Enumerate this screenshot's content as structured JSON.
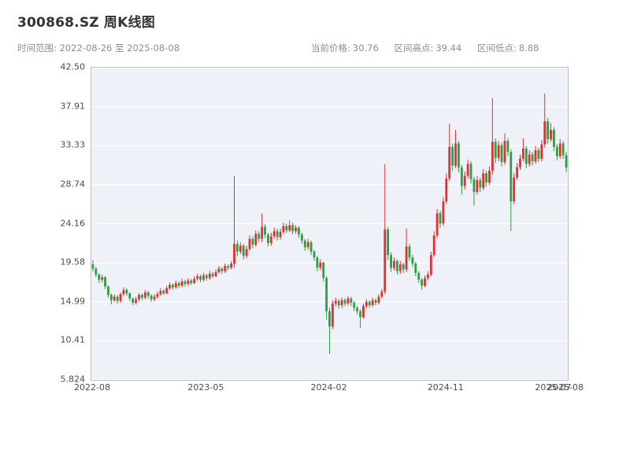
{
  "header": {
    "title": "300868.SZ 周K线图",
    "time_range_label": "时间范围:",
    "time_range": "2022-08-26 至 2025-08-08",
    "stats": {
      "current_price_label": "当前价格:",
      "current_price": "30.76",
      "high_label": "区间高点:",
      "high": "39.44",
      "low_label": "区间低点:",
      "low": "8.88"
    }
  },
  "chart_data": {
    "type": "candlestick",
    "title": "300868.SZ 周K线图",
    "frequency": "weekly",
    "start_date": "2022-08-26",
    "end_date": "2025-08-08",
    "current_price": 30.76,
    "range_high": 39.44,
    "range_low": 8.88,
    "ylim": [
      5.824,
      42.5
    ],
    "grid": true,
    "up_color": "#e03131",
    "down_color": "#2f9e44",
    "grid_color": "#ffffff",
    "bg_color": "#eef1f8",
    "axis_color": "#b9c0cb",
    "yticks": [
      {
        "label": "42.50",
        "value": 42.5
      },
      {
        "label": "37.91",
        "value": 37.9155
      },
      {
        "label": "33.33",
        "value": 33.331
      },
      {
        "label": "28.74",
        "value": 28.7465
      },
      {
        "label": "24.16",
        "value": 24.162
      },
      {
        "label": "19.58",
        "value": 19.5775
      },
      {
        "label": "14.99",
        "value": 14.993
      },
      {
        "label": "10.41",
        "value": 10.4085
      },
      {
        "label": "5.824",
        "value": 5.824
      }
    ],
    "xticks": [
      {
        "label": "2022-08",
        "index": 0
      },
      {
        "label": "2023-05",
        "index": 37
      },
      {
        "label": "2024-02",
        "index": 77
      },
      {
        "label": "2024-11",
        "index": 115
      },
      {
        "label": "2025-07",
        "index": 150
      },
      {
        "label": "2025-08",
        "index": 154
      }
    ],
    "ohlc_format": [
      "open",
      "high",
      "low",
      "close"
    ],
    "candles": [
      [
        19.4,
        19.9,
        18.6,
        18.9
      ],
      [
        18.9,
        19.1,
        17.9,
        18.2
      ],
      [
        18.2,
        18.4,
        17.2,
        17.6
      ],
      [
        17.6,
        18.2,
        17.3,
        17.9
      ],
      [
        17.9,
        18.0,
        16.5,
        16.8
      ],
      [
        16.8,
        16.9,
        15.5,
        15.8
      ],
      [
        15.8,
        16.0,
        14.7,
        15.2
      ],
      [
        15.2,
        15.9,
        15.0,
        15.6
      ],
      [
        15.6,
        15.8,
        14.8,
        15.1
      ],
      [
        15.1,
        16.1,
        14.9,
        15.9
      ],
      [
        15.9,
        16.7,
        15.7,
        16.4
      ],
      [
        16.4,
        16.6,
        15.7,
        16.0
      ],
      [
        16.0,
        16.1,
        15.1,
        15.4
      ],
      [
        15.4,
        15.5,
        14.6,
        14.9
      ],
      [
        14.9,
        15.6,
        14.7,
        15.3
      ],
      [
        15.3,
        16.0,
        15.1,
        15.8
      ],
      [
        15.8,
        16.0,
        15.2,
        15.5
      ],
      [
        15.5,
        16.4,
        15.3,
        16.1
      ],
      [
        16.1,
        16.3,
        15.4,
        15.7
      ],
      [
        15.7,
        15.9,
        15.0,
        15.3
      ],
      [
        15.3,
        15.9,
        15.1,
        15.6
      ],
      [
        15.6,
        16.2,
        15.4,
        15.9
      ],
      [
        15.9,
        16.6,
        15.7,
        16.3
      ],
      [
        16.3,
        16.5,
        15.8,
        16.0
      ],
      [
        16.0,
        16.9,
        15.9,
        16.6
      ],
      [
        16.6,
        17.3,
        16.4,
        17.0
      ],
      [
        17.0,
        17.2,
        16.4,
        16.7
      ],
      [
        16.7,
        17.5,
        16.5,
        17.2
      ],
      [
        17.2,
        17.4,
        16.6,
        16.9
      ],
      [
        16.9,
        17.7,
        16.7,
        17.4
      ],
      [
        17.4,
        17.6,
        16.8,
        17.1
      ],
      [
        17.1,
        17.8,
        16.9,
        17.5
      ],
      [
        17.5,
        17.7,
        17.0,
        17.2
      ],
      [
        17.2,
        18.0,
        17.1,
        17.7
      ],
      [
        17.7,
        18.3,
        17.5,
        18.0
      ],
      [
        18.0,
        18.2,
        17.3,
        17.6
      ],
      [
        17.6,
        18.4,
        17.4,
        18.1
      ],
      [
        18.1,
        18.3,
        17.5,
        17.8
      ],
      [
        17.8,
        18.6,
        17.6,
        18.3
      ],
      [
        18.3,
        18.5,
        17.8,
        18.0
      ],
      [
        18.0,
        18.8,
        17.9,
        18.5
      ],
      [
        18.5,
        19.2,
        18.3,
        18.9
      ],
      [
        18.9,
        19.1,
        18.3,
        18.6
      ],
      [
        18.6,
        19.5,
        18.4,
        19.2
      ],
      [
        19.2,
        19.4,
        18.7,
        19.0
      ],
      [
        19.0,
        19.8,
        18.8,
        19.5
      ],
      [
        19.5,
        29.74,
        19.0,
        21.8
      ],
      [
        21.8,
        22.2,
        20.4,
        20.9
      ],
      [
        20.9,
        22.0,
        20.6,
        21.6
      ],
      [
        21.6,
        21.8,
        20.0,
        20.4
      ],
      [
        20.4,
        21.6,
        20.1,
        21.2
      ],
      [
        21.2,
        22.8,
        21.0,
        22.4
      ],
      [
        22.4,
        22.7,
        21.3,
        21.7
      ],
      [
        21.7,
        23.4,
        21.5,
        23.0
      ],
      [
        23.0,
        23.3,
        22.0,
        22.4
      ],
      [
        22.4,
        25.38,
        22.0,
        23.8
      ],
      [
        23.8,
        24.1,
        22.5,
        22.9
      ],
      [
        22.9,
        23.1,
        21.5,
        21.9
      ],
      [
        21.9,
        23.1,
        21.6,
        22.7
      ],
      [
        22.7,
        23.7,
        22.4,
        23.3
      ],
      [
        23.3,
        23.6,
        22.2,
        22.6
      ],
      [
        22.6,
        23.6,
        22.3,
        23.2
      ],
      [
        23.2,
        24.3,
        23.0,
        23.9
      ],
      [
        23.9,
        24.2,
        23.1,
        23.4
      ],
      [
        23.4,
        24.55,
        23.2,
        24.0
      ],
      [
        24.0,
        24.3,
        22.9,
        23.3
      ],
      [
        23.3,
        24.0,
        23.0,
        23.7
      ],
      [
        23.7,
        23.9,
        22.5,
        22.9
      ],
      [
        22.9,
        23.1,
        21.8,
        22.2
      ],
      [
        22.2,
        22.4,
        21.0,
        21.4
      ],
      [
        21.4,
        22.4,
        21.1,
        22.0
      ],
      [
        22.0,
        22.2,
        20.5,
        20.9
      ],
      [
        20.9,
        21.1,
        19.8,
        20.2
      ],
      [
        20.2,
        20.4,
        18.6,
        19.0
      ],
      [
        19.0,
        20.0,
        18.7,
        19.6
      ],
      [
        19.6,
        19.7,
        17.4,
        17.8
      ],
      [
        17.8,
        18.0,
        12.9,
        13.9
      ],
      [
        13.9,
        14.3,
        8.88,
        12.1
      ],
      [
        12.1,
        15.2,
        11.8,
        14.8
      ],
      [
        14.8,
        15.5,
        14.5,
        15.1
      ],
      [
        15.1,
        15.3,
        14.2,
        14.6
      ],
      [
        14.6,
        15.5,
        14.3,
        15.2
      ],
      [
        15.2,
        15.4,
        14.5,
        14.8
      ],
      [
        14.8,
        15.7,
        14.6,
        15.4
      ],
      [
        15.4,
        15.6,
        14.5,
        14.9
      ],
      [
        14.9,
        15.1,
        13.9,
        14.3
      ],
      [
        14.3,
        14.5,
        13.5,
        13.9
      ],
      [
        13.9,
        14.1,
        11.9,
        13.2
      ],
      [
        13.2,
        14.8,
        13.0,
        14.5
      ],
      [
        14.5,
        15.3,
        14.2,
        15.0
      ],
      [
        15.0,
        15.2,
        14.3,
        14.6
      ],
      [
        14.6,
        15.5,
        14.4,
        15.2
      ],
      [
        15.2,
        15.4,
        14.6,
        14.9
      ],
      [
        14.9,
        15.9,
        14.7,
        15.6
      ],
      [
        15.6,
        16.5,
        15.4,
        16.2
      ],
      [
        16.2,
        31.16,
        15.9,
        23.5
      ],
      [
        23.5,
        23.8,
        19.9,
        20.5
      ],
      [
        20.5,
        20.8,
        18.5,
        19.0
      ],
      [
        19.0,
        20.2,
        18.7,
        19.8
      ],
      [
        19.8,
        20.0,
        18.2,
        18.6
      ],
      [
        18.6,
        19.8,
        18.3,
        19.4
      ],
      [
        19.4,
        19.6,
        18.4,
        18.8
      ],
      [
        18.8,
        23.62,
        18.5,
        21.5
      ],
      [
        21.5,
        21.8,
        19.8,
        20.2
      ],
      [
        20.2,
        20.5,
        19.1,
        19.5
      ],
      [
        19.5,
        19.7,
        18.0,
        18.4
      ],
      [
        18.4,
        18.6,
        17.2,
        17.6
      ],
      [
        17.6,
        17.8,
        16.4,
        16.9
      ],
      [
        16.9,
        18.1,
        16.7,
        17.8
      ],
      [
        17.8,
        18.6,
        17.5,
        18.2
      ],
      [
        18.2,
        20.9,
        18.0,
        20.5
      ],
      [
        20.5,
        23.3,
        20.3,
        22.8
      ],
      [
        22.8,
        25.9,
        22.5,
        25.4
      ],
      [
        25.4,
        25.7,
        23.7,
        24.2
      ],
      [
        24.2,
        27.3,
        23.9,
        26.8
      ],
      [
        26.8,
        30.1,
        26.5,
        29.5
      ],
      [
        29.5,
        35.93,
        29.2,
        33.2
      ],
      [
        33.2,
        33.6,
        30.4,
        31.0
      ],
      [
        31.0,
        35.2,
        30.7,
        33.6
      ],
      [
        33.6,
        33.9,
        30.2,
        30.8
      ],
      [
        30.8,
        31.1,
        27.6,
        28.6
      ],
      [
        28.6,
        30.3,
        28.2,
        29.8
      ],
      [
        29.8,
        31.7,
        29.5,
        31.2
      ],
      [
        31.2,
        31.5,
        28.9,
        29.4
      ],
      [
        29.4,
        29.7,
        26.3,
        27.9
      ],
      [
        27.9,
        29.8,
        27.6,
        29.3
      ],
      [
        29.3,
        29.6,
        27.9,
        28.4
      ],
      [
        28.4,
        30.6,
        28.1,
        30.1
      ],
      [
        30.1,
        30.4,
        28.5,
        29.0
      ],
      [
        29.0,
        30.9,
        28.7,
        30.4
      ],
      [
        30.4,
        38.93,
        29.9,
        33.8
      ],
      [
        33.8,
        34.2,
        31.3,
        31.9
      ],
      [
        31.9,
        33.9,
        31.5,
        33.4
      ],
      [
        33.4,
        33.7,
        30.9,
        31.4
      ],
      [
        31.4,
        34.8,
        31.1,
        33.9
      ],
      [
        33.9,
        34.2,
        32.1,
        32.6
      ],
      [
        32.6,
        32.9,
        23.31,
        26.8
      ],
      [
        26.8,
        30.1,
        26.5,
        29.6
      ],
      [
        29.6,
        31.3,
        29.3,
        30.8
      ],
      [
        30.8,
        32.3,
        30.5,
        31.8
      ],
      [
        31.8,
        34.2,
        31.5,
        33.0
      ],
      [
        33.0,
        33.3,
        30.7,
        31.2
      ],
      [
        31.2,
        32.8,
        30.9,
        32.3
      ],
      [
        32.3,
        32.6,
        31.0,
        31.5
      ],
      [
        31.5,
        33.3,
        31.2,
        32.8
      ],
      [
        32.8,
        33.1,
        31.4,
        31.8
      ],
      [
        31.8,
        34.0,
        31.5,
        33.5
      ],
      [
        33.5,
        39.44,
        33.1,
        36.2
      ],
      [
        36.2,
        36.6,
        33.6,
        34.1
      ],
      [
        34.1,
        36.0,
        33.8,
        35.2
      ],
      [
        35.2,
        35.5,
        32.7,
        33.2
      ],
      [
        33.2,
        33.5,
        31.6,
        32.1
      ],
      [
        32.1,
        34.1,
        31.8,
        33.6
      ],
      [
        33.6,
        33.9,
        31.8,
        32.2
      ],
      [
        32.2,
        32.6,
        30.2,
        30.76
      ]
    ]
  }
}
